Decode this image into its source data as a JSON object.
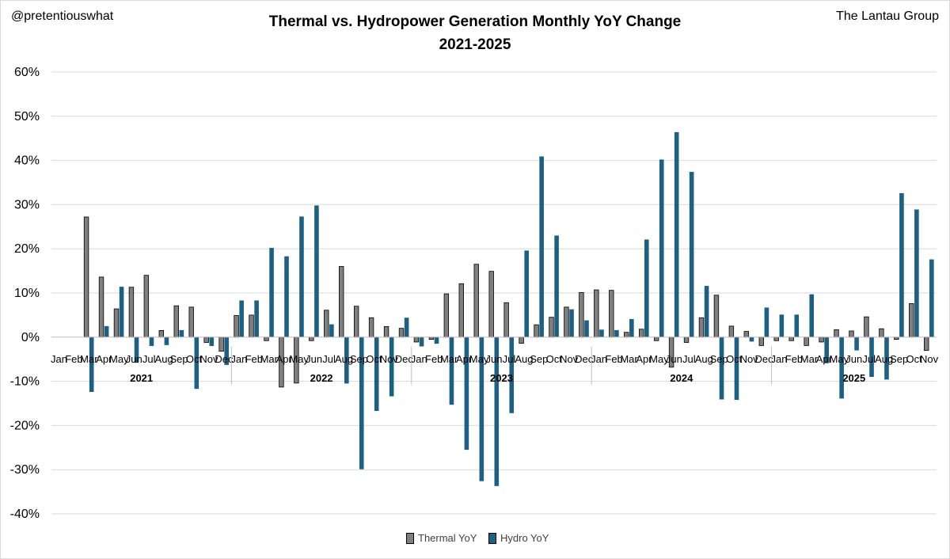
{
  "header": {
    "handle": "@pretentiouswhat",
    "source": "The Lantau Group",
    "title_line1": "Thermal vs. Hydropower Generation Monthly YoY Change",
    "title_line2": "2021-2025"
  },
  "colors": {
    "thermal": "#808080",
    "hydro": "#1f5f7f",
    "grid": "#d9d9d9",
    "axis": "#bfbfbf"
  },
  "chart_data": {
    "type": "bar",
    "title": "Thermal vs. Hydropower Generation Monthly YoY Change 2021-2025",
    "ylabel": "",
    "xlabel": "",
    "ylim": [
      -40,
      60
    ],
    "yticks": [
      -40,
      -30,
      -20,
      -10,
      0,
      10,
      20,
      30,
      40,
      50,
      60
    ],
    "ytick_labels": [
      "-40%",
      "-30%",
      "-20%",
      "-10%",
      "0%",
      "10%",
      "20%",
      "30%",
      "40%",
      "50%",
      "60%"
    ],
    "grid": true,
    "legend_position": "bottom-center",
    "years": [
      {
        "label": "2021",
        "months": 12
      },
      {
        "label": "2022",
        "months": 12
      },
      {
        "label": "2023",
        "months": 12
      },
      {
        "label": "2024",
        "months": 12
      },
      {
        "label": "2025",
        "months": 11
      }
    ],
    "categories": [
      "Jan",
      "Feb",
      "Mar",
      "Apr",
      "May",
      "Jun",
      "Jul",
      "Aug",
      "Sep",
      "Oct",
      "Nov",
      "Dec",
      "Jan",
      "Feb",
      "Mar",
      "Apr",
      "May",
      "Jun",
      "Jul",
      "Aug",
      "Sep",
      "Oct",
      "Nov",
      "Dec",
      "Jan",
      "Feb",
      "Mar",
      "Apr",
      "May",
      "Jun",
      "Jul",
      "Aug",
      "Sep",
      "Oct",
      "Nov",
      "Dec",
      "Jan",
      "Feb",
      "Mar",
      "Apr",
      "May",
      "Jun",
      "Jul",
      "Aug",
      "Sep",
      "Oct",
      "Nov",
      "Dec",
      "Jan",
      "Feb",
      "Mar",
      "Apr",
      "May",
      "Jun",
      "Jul",
      "Aug",
      "Sep",
      "Oct",
      "Nov"
    ],
    "series": [
      {
        "name": "Thermal YoY",
        "values": [
          0,
          0,
          27.2,
          13.6,
          6.4,
          11.3,
          14.0,
          1.5,
          7.1,
          6.8,
          -1.2,
          -3.2,
          4.9,
          5.0,
          -0.8,
          -11.3,
          -10.4,
          -0.8,
          6.1,
          16.0,
          7.0,
          4.4,
          2.4,
          2.0,
          -1.1,
          -0.5,
          9.8,
          12.1,
          16.5,
          14.9,
          7.8,
          -1.4,
          2.8,
          4.5,
          6.8,
          10.1,
          10.7,
          10.6,
          1.1,
          1.8,
          -0.8,
          -6.8,
          -1.2,
          4.4,
          9.5,
          2.5,
          1.3,
          -1.9,
          -0.8,
          -0.8,
          -1.9,
          -1.1,
          1.7,
          1.4,
          4.6,
          1.9,
          -0.5,
          7.6,
          -3.0
        ]
      },
      {
        "name": "Hydro YoY",
        "values": [
          0,
          0,
          -12.4,
          2.5,
          11.4,
          -5.8,
          -2.0,
          -1.8,
          1.6,
          -11.7,
          -2.0,
          -6.3,
          8.3,
          8.3,
          20.2,
          18.3,
          27.3,
          29.8,
          2.9,
          -10.5,
          -29.9,
          -16.7,
          -13.4,
          4.4,
          -2.1,
          -1.5,
          -15.3,
          -25.5,
          -32.6,
          -33.7,
          -17.2,
          19.6,
          40.9,
          23.0,
          6.3,
          3.8,
          1.7,
          1.6,
          4.1,
          22.1,
          40.2,
          46.4,
          37.4,
          11.6,
          -14.1,
          -14.2,
          -1.0,
          6.7,
          5.1,
          5.1,
          9.7,
          -5.9,
          -13.9,
          -3.0,
          -9.0,
          -9.6,
          32.6,
          28.9,
          17.6
        ]
      }
    ]
  }
}
